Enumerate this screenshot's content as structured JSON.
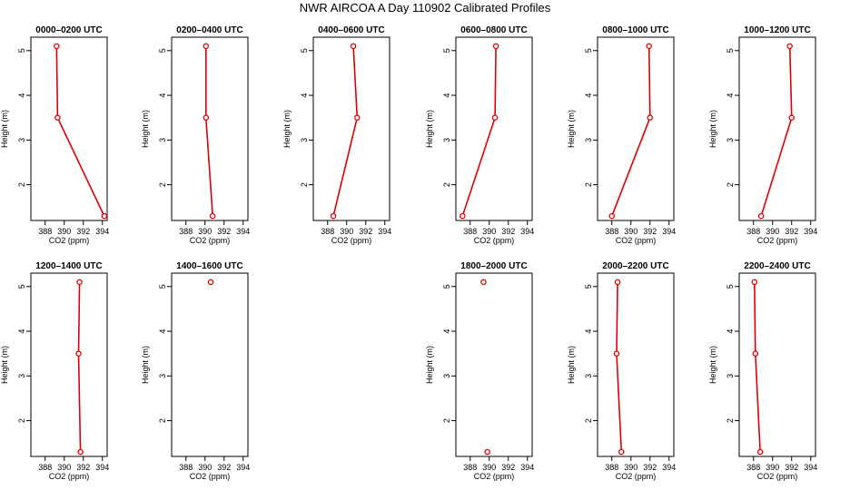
{
  "figure": {
    "title": "NWR AIRCOA A  Day 110902  Calibrated Profiles",
    "colors": {
      "profile": "#dd0000",
      "axis": "#000000"
    }
  },
  "chart_data": [
    {
      "type": "line",
      "title": "0000–0200 UTC",
      "xlabel": "CO2 (ppm)",
      "ylabel": "Height (m)",
      "xlim": [
        386.5,
        394.5
      ],
      "ylim": [
        1.2,
        5.3
      ],
      "xticks": [
        388,
        390,
        392,
        394
      ],
      "yticks": [
        2,
        3,
        4,
        5
      ],
      "points": [
        {
          "x": 389.2,
          "y": 5.1
        },
        {
          "x": 389.3,
          "y": 3.5
        },
        {
          "x": 394.2,
          "y": 1.3
        }
      ],
      "connected": true
    },
    {
      "type": "line",
      "title": "0200–0400 UTC",
      "xlabel": "CO2 (ppm)",
      "ylabel": "Height (m)",
      "xlim": [
        386.5,
        394.5
      ],
      "ylim": [
        1.2,
        5.3
      ],
      "xticks": [
        388,
        390,
        392,
        394
      ],
      "yticks": [
        2,
        3,
        4,
        5
      ],
      "points": [
        {
          "x": 390.1,
          "y": 5.1
        },
        {
          "x": 390.1,
          "y": 3.5
        },
        {
          "x": 390.8,
          "y": 1.3
        }
      ],
      "connected": true
    },
    {
      "type": "line",
      "title": "0400–0600 UTC",
      "xlabel": "CO2 (ppm)",
      "ylabel": "Height (m)",
      "xlim": [
        386.5,
        394.5
      ],
      "ylim": [
        1.2,
        5.3
      ],
      "xticks": [
        388,
        390,
        392,
        394
      ],
      "yticks": [
        2,
        3,
        4,
        5
      ],
      "points": [
        {
          "x": 390.7,
          "y": 5.1
        },
        {
          "x": 391.1,
          "y": 3.5
        },
        {
          "x": 388.6,
          "y": 1.3
        }
      ],
      "connected": true
    },
    {
      "type": "line",
      "title": "0600–0800 UTC",
      "xlabel": "CO2 (ppm)",
      "ylabel": "Height (m)",
      "xlim": [
        386.5,
        394.5
      ],
      "ylim": [
        1.2,
        5.3
      ],
      "xticks": [
        388,
        390,
        392,
        394
      ],
      "yticks": [
        2,
        3,
        4,
        5
      ],
      "points": [
        {
          "x": 390.7,
          "y": 5.1
        },
        {
          "x": 390.6,
          "y": 3.5
        },
        {
          "x": 387.2,
          "y": 1.3
        }
      ],
      "connected": true
    },
    {
      "type": "line",
      "title": "0800–1000 UTC",
      "xlabel": "CO2 (ppm)",
      "ylabel": "Height (m)",
      "xlim": [
        386.5,
        394.5
      ],
      "ylim": [
        1.2,
        5.3
      ],
      "xticks": [
        388,
        390,
        392,
        394
      ],
      "yticks": [
        2,
        3,
        4,
        5
      ],
      "points": [
        {
          "x": 391.9,
          "y": 5.1
        },
        {
          "x": 392.0,
          "y": 3.5
        },
        {
          "x": 388.0,
          "y": 1.3
        }
      ],
      "connected": true
    },
    {
      "type": "line",
      "title": "1000–1200 UTC",
      "xlabel": "CO2 (ppm)",
      "ylabel": "Height (m)",
      "xlim": [
        386.5,
        394.5
      ],
      "ylim": [
        1.2,
        5.3
      ],
      "xticks": [
        388,
        390,
        392,
        394
      ],
      "yticks": [
        2,
        3,
        4,
        5
      ],
      "points": [
        {
          "x": 391.8,
          "y": 5.1
        },
        {
          "x": 392.0,
          "y": 3.5
        },
        {
          "x": 388.8,
          "y": 1.3
        }
      ],
      "connected": true
    },
    {
      "type": "line",
      "title": "1200–1400 UTC",
      "xlabel": "CO2 (ppm)",
      "ylabel": "Height (m)",
      "xlim": [
        386.5,
        394.5
      ],
      "ylim": [
        1.2,
        5.3
      ],
      "xticks": [
        388,
        390,
        392,
        394
      ],
      "yticks": [
        2,
        3,
        4,
        5
      ],
      "points": [
        {
          "x": 391.6,
          "y": 5.1
        },
        {
          "x": 391.5,
          "y": 3.5
        },
        {
          "x": 391.7,
          "y": 1.3
        }
      ],
      "connected": true
    },
    {
      "type": "line",
      "title": "1400–1600 UTC",
      "xlabel": "CO2 (ppm)",
      "ylabel": "Height (m)",
      "xlim": [
        386.5,
        394.5
      ],
      "ylim": [
        1.2,
        5.3
      ],
      "xticks": [
        388,
        390,
        392,
        394
      ],
      "yticks": [
        2,
        3,
        4,
        5
      ],
      "points": [
        {
          "x": 390.6,
          "y": 5.1
        }
      ],
      "connected": true
    },
    null,
    {
      "type": "scatter",
      "title": "1800–2000 UTC",
      "xlabel": "CO2 (ppm)",
      "ylabel": "Height (m)",
      "xlim": [
        386.5,
        394.5
      ],
      "ylim": [
        1.2,
        5.3
      ],
      "xticks": [
        388,
        390,
        392,
        394
      ],
      "yticks": [
        2,
        3,
        4,
        5
      ],
      "points": [
        {
          "x": 389.4,
          "y": 5.1
        },
        {
          "x": 389.8,
          "y": 1.3
        }
      ],
      "connected": false
    },
    {
      "type": "line",
      "title": "2000–2200 UTC",
      "xlabel": "CO2 (ppm)",
      "ylabel": "Height (m)",
      "xlim": [
        386.5,
        394.5
      ],
      "ylim": [
        1.2,
        5.3
      ],
      "xticks": [
        388,
        390,
        392,
        394
      ],
      "yticks": [
        2,
        3,
        4,
        5
      ],
      "points": [
        {
          "x": 388.6,
          "y": 5.1
        },
        {
          "x": 388.5,
          "y": 3.5
        },
        {
          "x": 389.0,
          "y": 1.3
        }
      ],
      "connected": true
    },
    {
      "type": "line",
      "title": "2200–2400 UTC",
      "xlabel": "CO2 (ppm)",
      "ylabel": "Height (m)",
      "xlim": [
        386.5,
        394.5
      ],
      "ylim": [
        1.2,
        5.3
      ],
      "xticks": [
        388,
        390,
        392,
        394
      ],
      "yticks": [
        2,
        3,
        4,
        5
      ],
      "points": [
        {
          "x": 388.1,
          "y": 5.1
        },
        {
          "x": 388.2,
          "y": 3.5
        },
        {
          "x": 388.7,
          "y": 1.3
        }
      ],
      "connected": true
    }
  ]
}
